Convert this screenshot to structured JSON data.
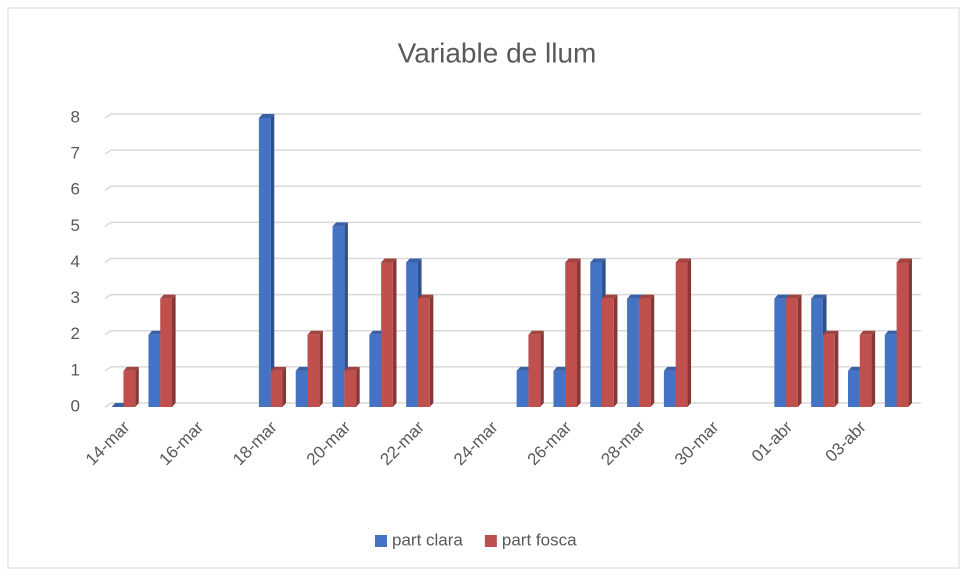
{
  "chart_data": {
    "type": "bar",
    "title": "Variable de llum",
    "categories": [
      "14-mar",
      null,
      "16-mar",
      null,
      "18-mar",
      null,
      "20-mar",
      null,
      "22-mar",
      null,
      "24-mar",
      null,
      "26-mar",
      null,
      "28-mar",
      null,
      "30-mar",
      null,
      "01-abr",
      null,
      "03-abr",
      null
    ],
    "series": [
      {
        "name": "part clara",
        "color": "#4472c4",
        "values": [
          0,
          2,
          null,
          null,
          8,
          1,
          5,
          2,
          4,
          null,
          null,
          1,
          1,
          4,
          3,
          1,
          null,
          null,
          3,
          3,
          1,
          2
        ]
      },
      {
        "name": "part fosca",
        "color": "#c0504d",
        "values": [
          1,
          3,
          null,
          null,
          1,
          2,
          1,
          4,
          3,
          null,
          null,
          2,
          4,
          3,
          3,
          4,
          null,
          null,
          3,
          2,
          2,
          4
        ]
      }
    ],
    "ylim": [
      0,
      8
    ],
    "yticks": [
      0,
      1,
      2,
      3,
      4,
      5,
      6,
      7,
      8
    ],
    "grid": true,
    "legend": "bottom"
  }
}
